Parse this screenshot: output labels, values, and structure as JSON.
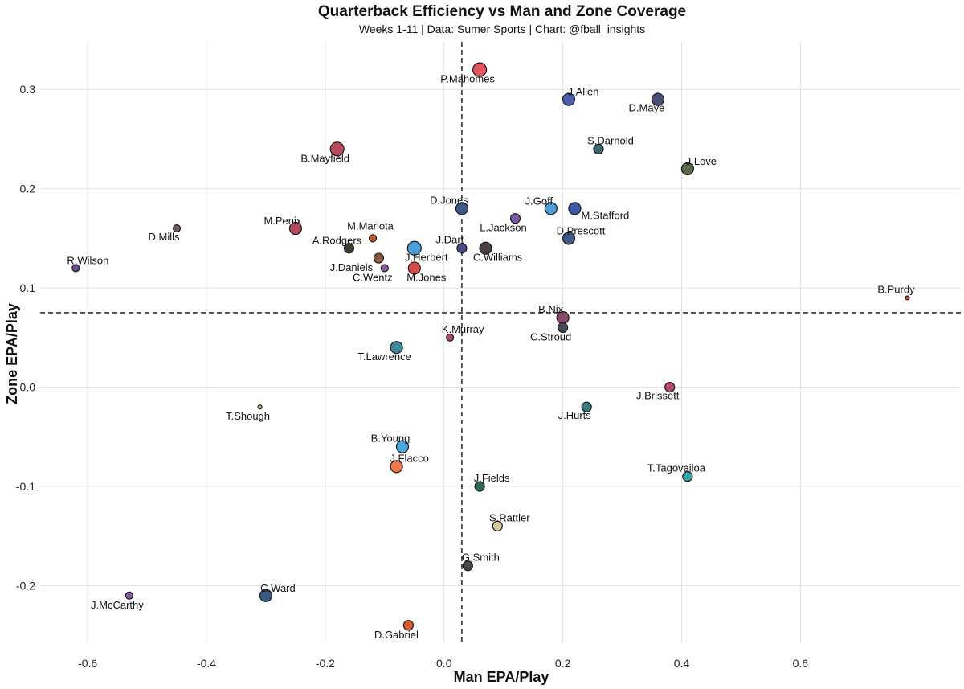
{
  "chart_data": {
    "type": "scatter",
    "title": "Quarterback Efficiency vs Man and Zone Coverage",
    "subtitle": "Weeks 1-11 | Data: Sumer Sports | Chart: @fball_insights",
    "xlabel": "Man EPA/Play",
    "ylabel": "Zone EPA/Play",
    "xlim": [
      -0.68,
      0.87
    ],
    "ylim": [
      -0.258,
      0.348
    ],
    "x_ticks": [
      "-0.6",
      "-0.4",
      "-0.2",
      "0.0",
      "0.2",
      "0.4",
      "0.6"
    ],
    "y_ticks": [
      "-0.2",
      "-0.1",
      "0.0",
      "0.1",
      "0.2",
      "0.3"
    ],
    "grid": true,
    "mean_lines": {
      "x": 0.03,
      "y": 0.075
    },
    "points": [
      {
        "name": "P.Mahomes",
        "x": 0.06,
        "y": 0.32,
        "size": "large",
        "color": "#e4555d"
      },
      {
        "name": "J.Allen",
        "x": 0.21,
        "y": 0.29,
        "size": "medium",
        "color": "#4a5fb0"
      },
      {
        "name": "D.Maye",
        "x": 0.36,
        "y": 0.29,
        "size": "medium",
        "color": "#4a4f7a"
      },
      {
        "name": "B.Mayfield",
        "x": -0.18,
        "y": 0.24,
        "size": "large",
        "color": "#b84a5e"
      },
      {
        "name": "S.Darnold",
        "x": 0.26,
        "y": 0.24,
        "size": "small",
        "color": "#3d6670"
      },
      {
        "name": "J.Love",
        "x": 0.41,
        "y": 0.22,
        "size": "medium",
        "color": "#5a6a4a"
      },
      {
        "name": "D.Jones",
        "x": 0.03,
        "y": 0.18,
        "size": "medium",
        "color": "#3e5a88"
      },
      {
        "name": "J.Goff",
        "x": 0.18,
        "y": 0.18,
        "size": "medium",
        "color": "#4a9fd8"
      },
      {
        "name": "M.Stafford",
        "x": 0.22,
        "y": 0.18,
        "size": "medium",
        "color": "#3c58a8"
      },
      {
        "name": "D.Mills",
        "x": -0.45,
        "y": 0.16,
        "size": "tiny",
        "color": "#6a5a6a"
      },
      {
        "name": "M.Penix",
        "x": -0.25,
        "y": 0.16,
        "size": "medium",
        "color": "#b84a5e"
      },
      {
        "name": "L.Jackson",
        "x": 0.12,
        "y": 0.17,
        "size": "small",
        "color": "#7a5aa8"
      },
      {
        "name": "M.Mariota",
        "x": -0.12,
        "y": 0.15,
        "size": "tiny",
        "color": "#b05a30"
      },
      {
        "name": "D.Prescott",
        "x": 0.21,
        "y": 0.15,
        "size": "medium",
        "color": "#3e5a88"
      },
      {
        "name": "A.Rodgers",
        "x": -0.16,
        "y": 0.14,
        "size": "small",
        "color": "#3a3a2e"
      },
      {
        "name": "J.Herbert",
        "x": -0.05,
        "y": 0.14,
        "size": "large",
        "color": "#4aa0d8"
      },
      {
        "name": "J.Dart",
        "x": 0.03,
        "y": 0.14,
        "size": "small",
        "color": "#4a4a8a"
      },
      {
        "name": "C.Williams",
        "x": 0.07,
        "y": 0.14,
        "size": "medium",
        "color": "#4a4040"
      },
      {
        "name": "R.Wilson",
        "x": -0.62,
        "y": 0.12,
        "size": "tiny",
        "color": "#6a4a8a"
      },
      {
        "name": "J.Daniels",
        "x": -0.11,
        "y": 0.13,
        "size": "small",
        "color": "#8a5a40"
      },
      {
        "name": "C.Wentz",
        "x": -0.1,
        "y": 0.12,
        "size": "tiny",
        "color": "#8a5aa0"
      },
      {
        "name": "M.Jones",
        "x": -0.05,
        "y": 0.12,
        "size": "medium",
        "color": "#d44a44"
      },
      {
        "name": "B.Purdy",
        "x": 0.78,
        "y": 0.09,
        "size": "dot",
        "color": "#d04a3a"
      },
      {
        "name": "B.Nix",
        "x": 0.2,
        "y": 0.07,
        "size": "medium",
        "color": "#8a4a6a"
      },
      {
        "name": "C.Stroud",
        "x": 0.2,
        "y": 0.06,
        "size": "small",
        "color": "#4a4a5a"
      },
      {
        "name": "K.Murray",
        "x": 0.01,
        "y": 0.05,
        "size": "tiny",
        "color": "#a84a5a"
      },
      {
        "name": "T.Lawrence",
        "x": -0.08,
        "y": 0.04,
        "size": "medium",
        "color": "#3a8a9a"
      },
      {
        "name": "J.Brissett",
        "x": 0.38,
        "y": 0.0,
        "size": "small",
        "color": "#b84a6a"
      },
      {
        "name": "T.Shough",
        "x": -0.31,
        "y": -0.02,
        "size": "dot",
        "color": "#c8b890"
      },
      {
        "name": "J.Hurts",
        "x": 0.24,
        "y": -0.02,
        "size": "small",
        "color": "#3a7a7a"
      },
      {
        "name": "B.Young",
        "x": -0.07,
        "y": -0.06,
        "size": "medium",
        "color": "#4aa8e0"
      },
      {
        "name": "J.Flacco",
        "x": -0.08,
        "y": -0.08,
        "size": "medium",
        "color": "#f0784a"
      },
      {
        "name": "T.Tagovailoa",
        "x": 0.41,
        "y": -0.09,
        "size": "small",
        "color": "#3aa8a8"
      },
      {
        "name": "J.Fields",
        "x": 0.06,
        "y": -0.1,
        "size": "small",
        "color": "#2a6a50"
      },
      {
        "name": "S.Rattler",
        "x": 0.09,
        "y": -0.14,
        "size": "small",
        "color": "#d8c8a0"
      },
      {
        "name": "G.Smith",
        "x": 0.04,
        "y": -0.18,
        "size": "small",
        "color": "#4a4a4a"
      },
      {
        "name": "C.Ward",
        "x": -0.3,
        "y": -0.21,
        "size": "medium",
        "color": "#3a5a80"
      },
      {
        "name": "J.McCarthy",
        "x": -0.53,
        "y": -0.21,
        "size": "tiny",
        "color": "#8a5aa8"
      },
      {
        "name": "D.Gabriel",
        "x": -0.06,
        "y": -0.24,
        "size": "small",
        "color": "#e05a2a"
      }
    ]
  }
}
